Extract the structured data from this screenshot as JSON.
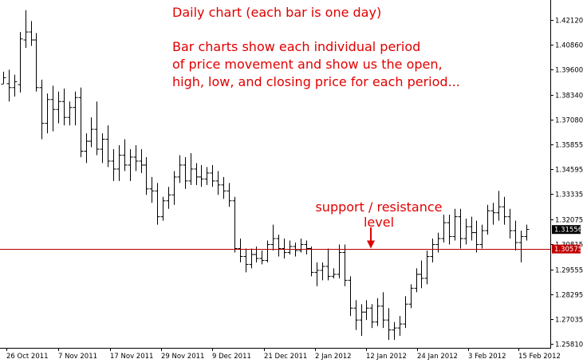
{
  "chart_data": {
    "type": "ohlc",
    "annotations": {
      "title": "Daily chart (each bar is one day)",
      "description_lines": [
        "Bar charts show each individual period",
        "of price movement and show us the open,",
        "high, low, and closing price for each period..."
      ],
      "level_lines": [
        "support / resistance",
        "level"
      ]
    },
    "ylim": [
      1.256,
      1.4311
    ],
    "y_ticks": [
      "1.42120",
      "1.40860",
      "1.39600",
      "1.38340",
      "1.37080",
      "1.35855",
      "1.34595",
      "1.33335",
      "1.32075",
      "1.30815",
      "1.29555",
      "1.28295",
      "1.27035",
      "1.25810"
    ],
    "x_ticks": [
      "26 Oct 2011",
      "7 Nov 2011",
      "17 Nov 2011",
      "29 Nov 2011",
      "9 Dec 2011",
      "21 Dec 2011",
      "2 Jan 2012",
      "12 Jan 2012",
      "24 Jan 2012",
      "3 Feb 2012",
      "15 Feb 2012"
    ],
    "support_resistance": {
      "value": 1.30575,
      "label": "1.30575"
    },
    "current_price": {
      "value": 1.31556,
      "label": "1.31556"
    },
    "colors": {
      "bars": "#000000",
      "level_line": "#b30000",
      "annotation": "#e00000",
      "price_tag": "#c00000"
    },
    "bars": [
      {
        "o": 1.3888,
        "h": 1.395,
        "l": 1.389,
        "c": 1.392
      },
      {
        "o": 1.389,
        "h": 1.396,
        "l": 1.38,
        "c": 1.387
      },
      {
        "o": 1.387,
        "h": 1.3935,
        "l": 1.3825,
        "c": 1.39
      },
      {
        "o": 1.3885,
        "h": 1.415,
        "l": 1.3845,
        "c": 1.4115
      },
      {
        "o": 1.411,
        "h": 1.426,
        "l": 1.407,
        "c": 1.415
      },
      {
        "o": 1.415,
        "h": 1.4205,
        "l": 1.408,
        "c": 1.411
      },
      {
        "o": 1.411,
        "h": 1.4145,
        "l": 1.385,
        "c": 1.387
      },
      {
        "o": 1.387,
        "h": 1.391,
        "l": 1.361,
        "c": 1.369
      },
      {
        "o": 1.369,
        "h": 1.384,
        "l": 1.364,
        "c": 1.381
      },
      {
        "o": 1.381,
        "h": 1.388,
        "l": 1.365,
        "c": 1.376
      },
      {
        "o": 1.376,
        "h": 1.385,
        "l": 1.369,
        "c": 1.38
      },
      {
        "o": 1.38,
        "h": 1.3865,
        "l": 1.368,
        "c": 1.372
      },
      {
        "o": 1.372,
        "h": 1.38,
        "l": 1.368,
        "c": 1.377
      },
      {
        "o": 1.377,
        "h": 1.385,
        "l": 1.368,
        "c": 1.382
      },
      {
        "o": 1.382,
        "h": 1.387,
        "l": 1.352,
        "c": 1.355
      },
      {
        "o": 1.355,
        "h": 1.364,
        "l": 1.349,
        "c": 1.36
      },
      {
        "o": 1.36,
        "h": 1.372,
        "l": 1.357,
        "c": 1.366
      },
      {
        "o": 1.366,
        "h": 1.38,
        "l": 1.353,
        "c": 1.356
      },
      {
        "o": 1.356,
        "h": 1.364,
        "l": 1.349,
        "c": 1.361
      },
      {
        "o": 1.361,
        "h": 1.368,
        "l": 1.347,
        "c": 1.35
      },
      {
        "o": 1.35,
        "h": 1.356,
        "l": 1.34,
        "c": 1.346
      },
      {
        "o": 1.346,
        "h": 1.358,
        "l": 1.34,
        "c": 1.353
      },
      {
        "o": 1.353,
        "h": 1.361,
        "l": 1.345,
        "c": 1.348
      },
      {
        "o": 1.348,
        "h": 1.356,
        "l": 1.34,
        "c": 1.352
      },
      {
        "o": 1.352,
        "h": 1.358,
        "l": 1.345,
        "c": 1.35
      },
      {
        "o": 1.35,
        "h": 1.356,
        "l": 1.344,
        "c": 1.348
      },
      {
        "o": 1.348,
        "h": 1.352,
        "l": 1.333,
        "c": 1.336
      },
      {
        "o": 1.336,
        "h": 1.342,
        "l": 1.329,
        "c": 1.335
      },
      {
        "o": 1.335,
        "h": 1.339,
        "l": 1.318,
        "c": 1.322
      },
      {
        "o": 1.322,
        "h": 1.332,
        "l": 1.32,
        "c": 1.33
      },
      {
        "o": 1.33,
        "h": 1.337,
        "l": 1.326,
        "c": 1.333
      },
      {
        "o": 1.333,
        "h": 1.345,
        "l": 1.328,
        "c": 1.342
      },
      {
        "o": 1.342,
        "h": 1.353,
        "l": 1.339,
        "c": 1.348
      },
      {
        "o": 1.348,
        "h": 1.352,
        "l": 1.336,
        "c": 1.34
      },
      {
        "o": 1.34,
        "h": 1.354,
        "l": 1.338,
        "c": 1.346
      },
      {
        "o": 1.346,
        "h": 1.349,
        "l": 1.338,
        "c": 1.342
      },
      {
        "o": 1.342,
        "h": 1.348,
        "l": 1.337,
        "c": 1.341
      },
      {
        "o": 1.341,
        "h": 1.347,
        "l": 1.338,
        "c": 1.344
      },
      {
        "o": 1.344,
        "h": 1.348,
        "l": 1.337,
        "c": 1.34
      },
      {
        "o": 1.34,
        "h": 1.345,
        "l": 1.333,
        "c": 1.338
      },
      {
        "o": 1.338,
        "h": 1.342,
        "l": 1.331,
        "c": 1.335
      },
      {
        "o": 1.335,
        "h": 1.339,
        "l": 1.327,
        "c": 1.33
      },
      {
        "o": 1.33,
        "h": 1.332,
        "l": 1.304,
        "c": 1.306
      },
      {
        "o": 1.306,
        "h": 1.311,
        "l": 1.299,
        "c": 1.302
      },
      {
        "o": 1.302,
        "h": 1.306,
        "l": 1.294,
        "c": 1.298
      },
      {
        "o": 1.298,
        "h": 1.306,
        "l": 1.296,
        "c": 1.303
      },
      {
        "o": 1.303,
        "h": 1.307,
        "l": 1.299,
        "c": 1.301
      },
      {
        "o": 1.301,
        "h": 1.305,
        "l": 1.298,
        "c": 1.3
      },
      {
        "o": 1.3,
        "h": 1.31,
        "l": 1.299,
        "c": 1.308
      },
      {
        "o": 1.308,
        "h": 1.318,
        "l": 1.305,
        "c": 1.311
      },
      {
        "o": 1.311,
        "h": 1.313,
        "l": 1.302,
        "c": 1.306
      },
      {
        "o": 1.306,
        "h": 1.311,
        "l": 1.301,
        "c": 1.304
      },
      {
        "o": 1.304,
        "h": 1.31,
        "l": 1.303,
        "c": 1.307
      },
      {
        "o": 1.307,
        "h": 1.309,
        "l": 1.302,
        "c": 1.305
      },
      {
        "o": 1.305,
        "h": 1.311,
        "l": 1.304,
        "c": 1.308
      },
      {
        "o": 1.308,
        "h": 1.31,
        "l": 1.303,
        "c": 1.306
      },
      {
        "o": 1.306,
        "h": 1.307,
        "l": 1.292,
        "c": 1.294
      },
      {
        "o": 1.294,
        "h": 1.299,
        "l": 1.287,
        "c": 1.295
      },
      {
        "o": 1.295,
        "h": 1.299,
        "l": 1.29,
        "c": 1.297
      },
      {
        "o": 1.297,
        "h": 1.306,
        "l": 1.29,
        "c": 1.292
      },
      {
        "o": 1.292,
        "h": 1.296,
        "l": 1.291,
        "c": 1.293
      },
      {
        "o": 1.293,
        "h": 1.308,
        "l": 1.291,
        "c": 1.304
      },
      {
        "o": 1.304,
        "h": 1.308,
        "l": 1.287,
        "c": 1.29
      },
      {
        "o": 1.29,
        "h": 1.292,
        "l": 1.272,
        "c": 1.276
      },
      {
        "o": 1.276,
        "h": 1.28,
        "l": 1.265,
        "c": 1.27
      },
      {
        "o": 1.27,
        "h": 1.278,
        "l": 1.262,
        "c": 1.274
      },
      {
        "o": 1.274,
        "h": 1.28,
        "l": 1.27,
        "c": 1.276
      },
      {
        "o": 1.276,
        "h": 1.278,
        "l": 1.266,
        "c": 1.269
      },
      {
        "o": 1.269,
        "h": 1.281,
        "l": 1.267,
        "c": 1.277
      },
      {
        "o": 1.277,
        "h": 1.284,
        "l": 1.266,
        "c": 1.27
      },
      {
        "o": 1.27,
        "h": 1.276,
        "l": 1.26,
        "c": 1.265
      },
      {
        "o": 1.265,
        "h": 1.269,
        "l": 1.26,
        "c": 1.266
      },
      {
        "o": 1.266,
        "h": 1.272,
        "l": 1.262,
        "c": 1.268
      },
      {
        "o": 1.268,
        "h": 1.282,
        "l": 1.266,
        "c": 1.278
      },
      {
        "o": 1.278,
        "h": 1.288,
        "l": 1.276,
        "c": 1.286
      },
      {
        "o": 1.286,
        "h": 1.296,
        "l": 1.284,
        "c": 1.293
      },
      {
        "o": 1.293,
        "h": 1.3,
        "l": 1.286,
        "c": 1.291
      },
      {
        "o": 1.291,
        "h": 1.305,
        "l": 1.288,
        "c": 1.302
      },
      {
        "o": 1.302,
        "h": 1.311,
        "l": 1.299,
        "c": 1.308
      },
      {
        "o": 1.308,
        "h": 1.314,
        "l": 1.304,
        "c": 1.311
      },
      {
        "o": 1.311,
        "h": 1.323,
        "l": 1.309,
        "c": 1.319
      },
      {
        "o": 1.319,
        "h": 1.323,
        "l": 1.308,
        "c": 1.312
      },
      {
        "o": 1.312,
        "h": 1.326,
        "l": 1.31,
        "c": 1.322
      },
      {
        "o": 1.322,
        "h": 1.326,
        "l": 1.306,
        "c": 1.311
      },
      {
        "o": 1.311,
        "h": 1.321,
        "l": 1.308,
        "c": 1.317
      },
      {
        "o": 1.317,
        "h": 1.322,
        "l": 1.31,
        "c": 1.314
      },
      {
        "o": 1.314,
        "h": 1.32,
        "l": 1.304,
        "c": 1.308
      },
      {
        "o": 1.308,
        "h": 1.318,
        "l": 1.306,
        "c": 1.315
      },
      {
        "o": 1.315,
        "h": 1.328,
        "l": 1.313,
        "c": 1.325
      },
      {
        "o": 1.325,
        "h": 1.329,
        "l": 1.318,
        "c": 1.324
      },
      {
        "o": 1.324,
        "h": 1.335,
        "l": 1.32,
        "c": 1.327
      },
      {
        "o": 1.327,
        "h": 1.332,
        "l": 1.318,
        "c": 1.322
      },
      {
        "o": 1.322,
        "h": 1.326,
        "l": 1.311,
        "c": 1.315
      },
      {
        "o": 1.315,
        "h": 1.32,
        "l": 1.305,
        "c": 1.309
      },
      {
        "o": 1.309,
        "h": 1.315,
        "l": 1.299,
        "c": 1.312
      },
      {
        "o": 1.312,
        "h": 1.318,
        "l": 1.31,
        "c": 1.3156
      }
    ]
  }
}
